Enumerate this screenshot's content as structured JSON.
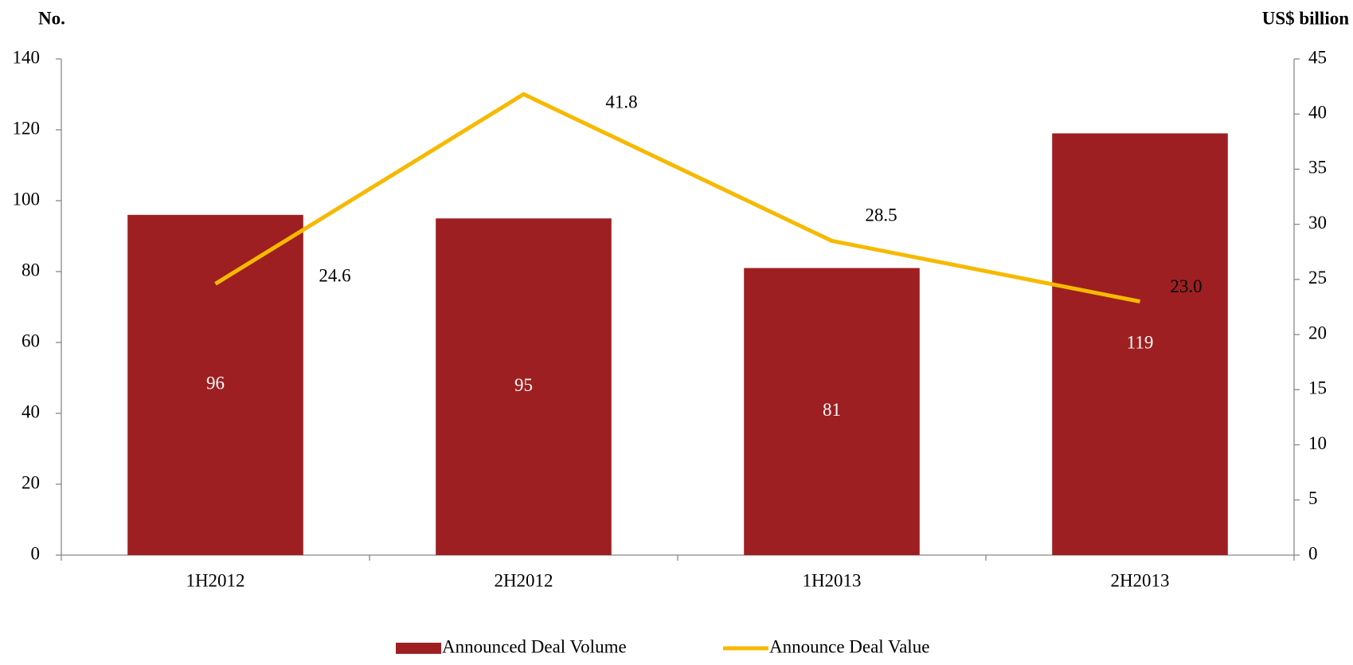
{
  "chart_data": {
    "type": "combo",
    "y_label": "No.",
    "y2_label": "US$ billion",
    "categories": [
      "1H2012",
      "2H2012",
      "1H2013",
      "2H2013"
    ],
    "series": [
      {
        "name": "Announced Deal Volume",
        "type": "bar",
        "color": "#9e1f21",
        "values": [
          96,
          95,
          81,
          119
        ]
      },
      {
        "name": "Announce Deal Value",
        "type": "line",
        "axis": "y2",
        "color": "#f7b900",
        "values": [
          24.6,
          41.8,
          28.5,
          23.0
        ],
        "value_labels": [
          "24.6",
          "41.8",
          "28.5",
          "23.0"
        ]
      }
    ],
    "ylim": [
      0,
      140
    ],
    "yticks": [
      0,
      20,
      40,
      60,
      80,
      100,
      120,
      140
    ],
    "y2lim": [
      0,
      45
    ],
    "y2ticks": [
      0,
      5,
      10,
      15,
      20,
      25,
      30,
      35,
      40,
      45
    ],
    "legend": "bottom"
  }
}
